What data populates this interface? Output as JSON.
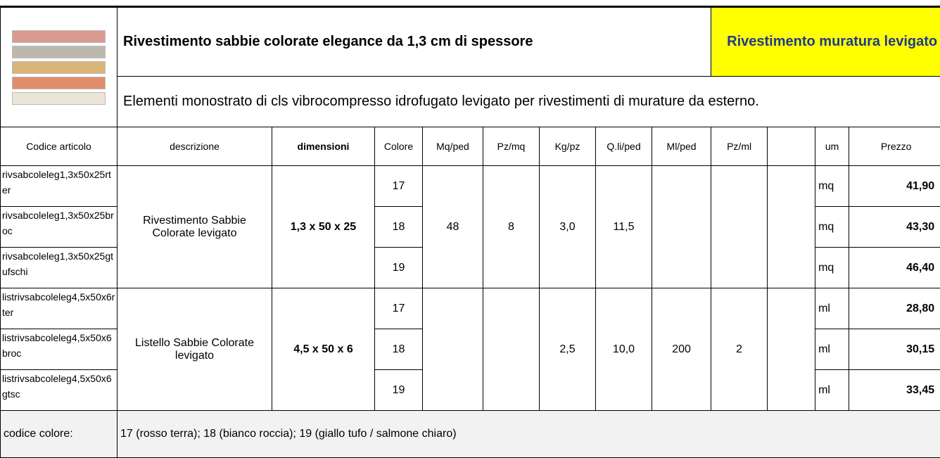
{
  "header": {
    "title": "Rivestimento sabbie colorate elegance da 1,3 cm di spessore",
    "tag": "Rivestimento muratura levigato",
    "subtitle": "Elementi monostrato di cls vibrocompresso idrofugato levigato per rivestimenti di murature da esterno."
  },
  "table": {
    "columns": [
      "Codice articolo",
      "descrizione",
      "dimensioni",
      "Colore",
      "Mq/ped",
      "Pz/mq",
      "Kg/pz",
      "Q.li/ped",
      "Ml/ped",
      "Pz/ml",
      "um",
      "Prezzo"
    ],
    "groups": [
      {
        "descrizione": "Rivestimento Sabbie Colorate levigato",
        "dimensioni": "1,3 x 50 x 25",
        "mq_ped": "48",
        "pz_mq": "8",
        "kg_pz": "3,0",
        "qli_ped": "11,5",
        "items": [
          {
            "codice": "rivsabcoleleg1,3x50x25rter",
            "colore": "17",
            "um": "mq",
            "prezzo": "41,90"
          },
          {
            "codice": "rivsabcoleleg1,3x50x25broc",
            "colore": "18",
            "um": "mq",
            "prezzo": "43,30"
          },
          {
            "codice": "rivsabcoleleg1,3x50x25gtufschi",
            "colore": "19",
            "um": "mq",
            "prezzo": "46,40"
          }
        ]
      },
      {
        "descrizione": "Listello Sabbie Colorate levigato",
        "dimensioni": "4,5 x 50 x 6",
        "kg_pz": "2,5",
        "qli_ped": "10,0",
        "ml_ped": "200",
        "pz_ml": "2",
        "items": [
          {
            "codice": "listrivsabcoleleg4,5x50x6rter",
            "colore": "17",
            "um": "ml",
            "prezzo": "28,80"
          },
          {
            "codice": "listrivsabcoleleg4,5x50x6broc",
            "colore": "18",
            "um": "ml",
            "prezzo": "30,15"
          },
          {
            "codice": "listrivsabcoleleg4,5x50x6gtsc",
            "colore": "19",
            "um": "ml",
            "prezzo": "33,45"
          }
        ]
      }
    ]
  },
  "footer": {
    "label": "codice colore:",
    "text": "17 (rosso terra); 18 (bianco roccia); 19 (giallo tufo / salmone chiaro)"
  }
}
